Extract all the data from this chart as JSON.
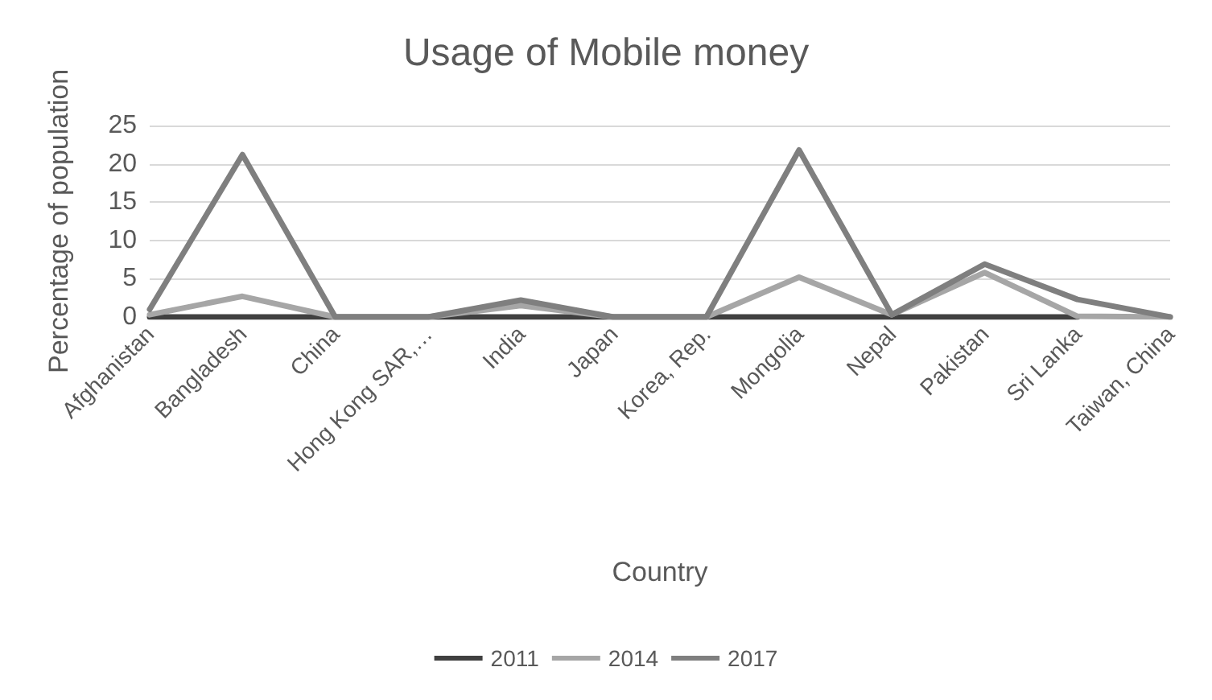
{
  "chart_data": {
    "type": "line",
    "title": "Usage of Mobile money",
    "xlabel": "Country",
    "ylabel": "Percentage of population",
    "categories": [
      "Afghanistan",
      "Bangladesh",
      "China",
      "Hong Kong SAR,…",
      "India",
      "Japan",
      "Korea, Rep.",
      "Mongolia",
      "Nepal",
      "Pakistan",
      "Sri Lanka",
      "Taiwan, China"
    ],
    "series": [
      {
        "name": "2011",
        "color": "#404040",
        "values": [
          0,
          0,
          0,
          0,
          0,
          0,
          0,
          0,
          0,
          0,
          0,
          null
        ]
      },
      {
        "name": "2014",
        "color": "#a6a6a6",
        "values": [
          0.3,
          2.7,
          0,
          0,
          1.5,
          0,
          0,
          5.2,
          0.3,
          5.8,
          0.1,
          0
        ]
      },
      {
        "name": "2017",
        "color": "#7f7f7f",
        "values": [
          1,
          21.2,
          0,
          0,
          2.2,
          0,
          0,
          21.8,
          0.3,
          6.9,
          2.3,
          0
        ]
      }
    ],
    "ylim": [
      0,
      25
    ],
    "yticks": [
      0,
      5,
      10,
      15,
      20,
      25
    ],
    "grid": "y",
    "legend": "bottom",
    "marker": "none",
    "line_style": "solid"
  }
}
